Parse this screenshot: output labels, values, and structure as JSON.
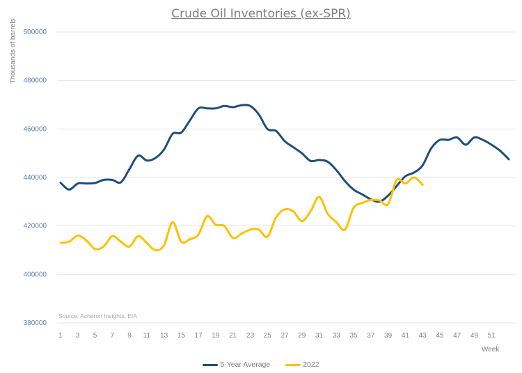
{
  "chart_data": {
    "type": "line",
    "title": "Crude Oil Inventories (ex-SPR)",
    "ylabel": "Thousands of barrels",
    "xlabel": "Week",
    "source": "Source: Acheron Insights, EIA",
    "ylim": [
      380000,
      500000
    ],
    "yticks": [
      380000,
      400000,
      420000,
      440000,
      460000,
      480000,
      500000
    ],
    "xlim": [
      1,
      53
    ],
    "xticks": [
      1,
      3,
      5,
      7,
      9,
      11,
      13,
      15,
      17,
      19,
      21,
      23,
      25,
      27,
      29,
      31,
      33,
      35,
      37,
      39,
      41,
      43,
      45,
      47,
      49,
      51
    ],
    "grid": "horizontal",
    "legend_position": "bottom",
    "series": [
      {
        "name": "5-Year Average",
        "color": "#1f4e79",
        "x": [
          1,
          2,
          3,
          4,
          5,
          6,
          7,
          8,
          9,
          10,
          11,
          12,
          13,
          14,
          15,
          16,
          17,
          18,
          19,
          20,
          21,
          22,
          23,
          24,
          25,
          26,
          27,
          28,
          29,
          30,
          31,
          32,
          33,
          34,
          35,
          36,
          37,
          38,
          39,
          40,
          41,
          42,
          43,
          44,
          45,
          46,
          47,
          48,
          49,
          50,
          51,
          52,
          53
        ],
        "values": [
          437800,
          435000,
          437500,
          437500,
          437700,
          439000,
          439000,
          438000,
          443500,
          449000,
          447000,
          448000,
          451500,
          458000,
          458500,
          463500,
          468500,
          468500,
          468500,
          469500,
          469000,
          469800,
          469500,
          466000,
          460000,
          459200,
          455000,
          452500,
          450000,
          446800,
          447200,
          446500,
          443000,
          438500,
          435000,
          433000,
          431000,
          430000,
          432500,
          436500,
          440500,
          442000,
          445000,
          452000,
          455500,
          455500,
          456500,
          453500,
          456500,
          455500,
          453500,
          451000,
          447500
        ]
      },
      {
        "name": "2022",
        "color": "#ffc000",
        "x": [
          1,
          2,
          3,
          4,
          5,
          6,
          7,
          8,
          9,
          10,
          11,
          12,
          13,
          14,
          15,
          16,
          17,
          18,
          19,
          20,
          21,
          22,
          23,
          24,
          25,
          26,
          27,
          28,
          29,
          30,
          31,
          32,
          33,
          34,
          35,
          36,
          37,
          38,
          39,
          40,
          41,
          42,
          43
        ],
        "values": [
          413000,
          413500,
          416000,
          414000,
          410500,
          411500,
          415800,
          413500,
          411500,
          415800,
          413000,
          410000,
          412000,
          421500,
          413500,
          414500,
          416500,
          424000,
          420500,
          420000,
          415000,
          416800,
          418500,
          418500,
          415500,
          423500,
          426800,
          426000,
          422000,
          426000,
          432000,
          425000,
          421500,
          418500,
          427500,
          429500,
          430700,
          430500,
          429000,
          439000,
          437500,
          440000,
          437000
        ]
      }
    ]
  }
}
